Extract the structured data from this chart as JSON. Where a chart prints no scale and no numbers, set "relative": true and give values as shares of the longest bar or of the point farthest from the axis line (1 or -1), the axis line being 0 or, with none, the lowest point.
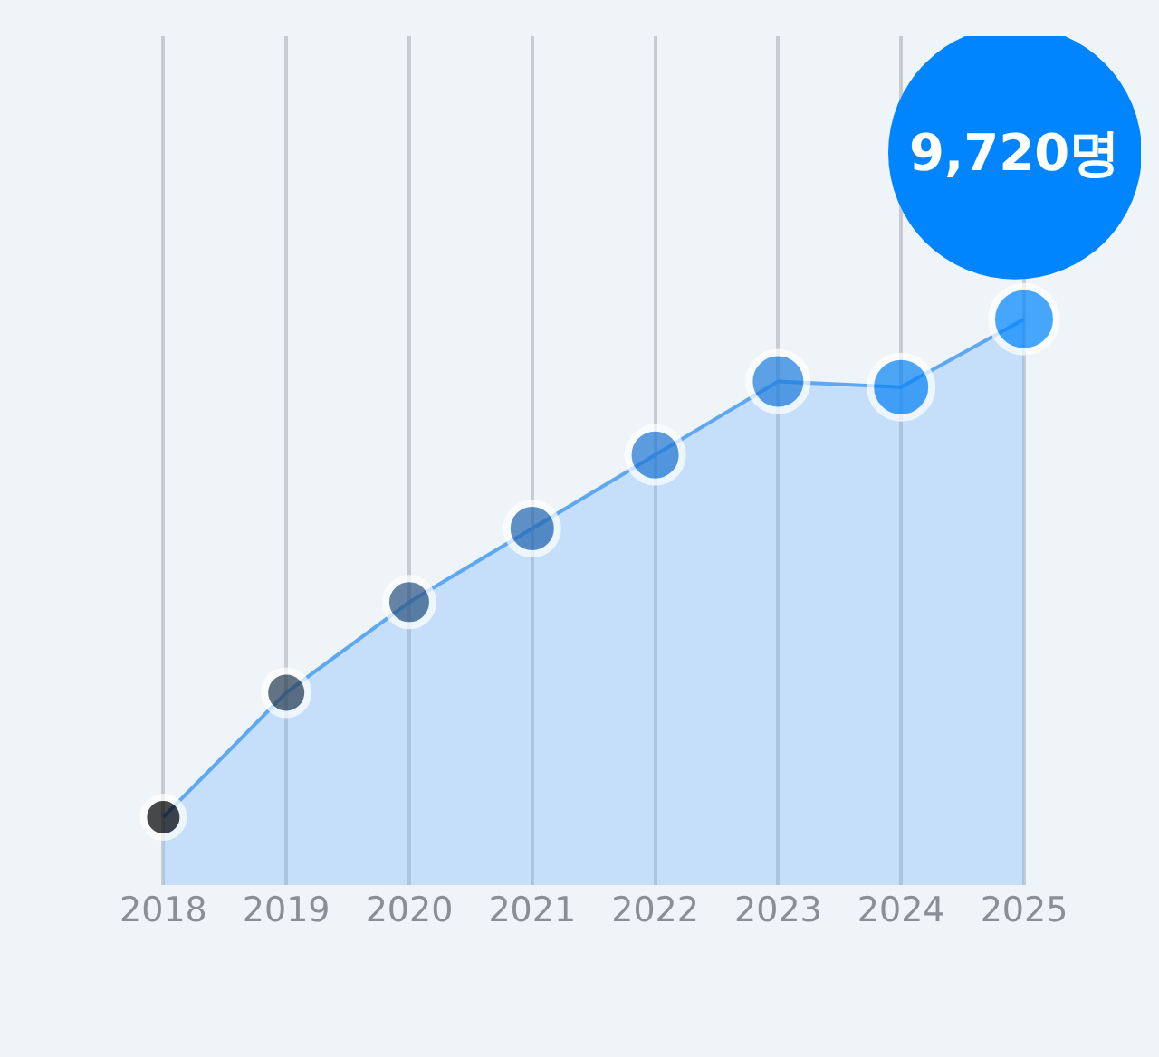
{
  "chart_data": {
    "type": "area",
    "relative": true,
    "categories": [
      "2018",
      "2019",
      "2020",
      "2021",
      "2022",
      "2023",
      "2024",
      "2025"
    ],
    "series": [
      {
        "color": "#5ea8f2",
        "colors": [
          "#000000",
          "#2a3d52",
          "#2b5582",
          "#2266b0",
          "#1f77d4",
          "#1f7ddd",
          "#0a84f5",
          "#0085ff"
        ],
        "values": [
          0.12,
          0.34,
          0.5,
          0.63,
          0.76,
          0.89,
          0.88,
          1
        ]
      }
    ],
    "annotations": [
      {
        "text": "9,720명",
        "x": "2025",
        "y": 1
      }
    ],
    "grid": "x",
    "marker": "circle"
  }
}
